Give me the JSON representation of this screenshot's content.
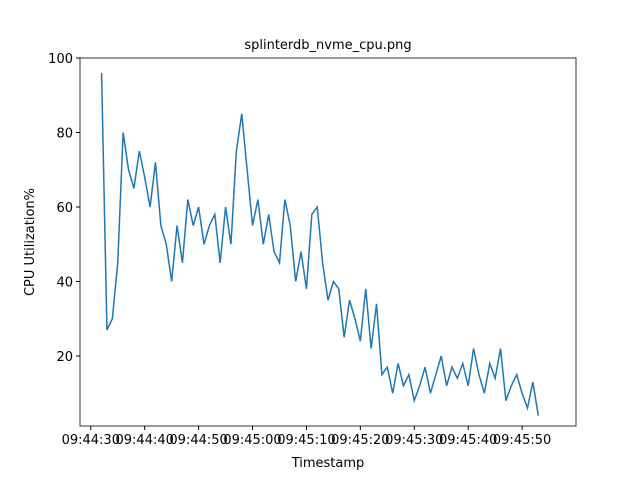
{
  "chart_data": {
    "type": "line",
    "title": "splinterdb_nvme_cpu.png",
    "x_label": "Timestamp",
    "y_label": "CPU Utilization%",
    "x": [
      "09:44:32",
      "09:44:33",
      "09:44:34",
      "09:44:35",
      "09:44:36",
      "09:44:37",
      "09:44:38",
      "09:44:39",
      "09:44:40",
      "09:44:41",
      "09:44:42",
      "09:44:43",
      "09:44:44",
      "09:44:45",
      "09:44:46",
      "09:44:47",
      "09:44:48",
      "09:44:49",
      "09:44:50",
      "09:44:51",
      "09:44:52",
      "09:44:53",
      "09:44:54",
      "09:44:55",
      "09:44:56",
      "09:44:57",
      "09:44:58",
      "09:44:59",
      "09:45:00",
      "09:45:01",
      "09:45:02",
      "09:45:03",
      "09:45:04",
      "09:45:05",
      "09:45:06",
      "09:45:07",
      "09:45:08",
      "09:45:09",
      "09:45:10",
      "09:45:11",
      "09:45:12",
      "09:45:13",
      "09:45:14",
      "09:45:15",
      "09:45:16",
      "09:45:17",
      "09:45:18",
      "09:45:19",
      "09:45:20",
      "09:45:21",
      "09:45:22",
      "09:45:23",
      "09:45:24",
      "09:45:25",
      "09:45:26",
      "09:45:27",
      "09:45:28",
      "09:45:29",
      "09:45:30",
      "09:45:31",
      "09:45:32",
      "09:45:33",
      "09:45:34",
      "09:45:35",
      "09:45:36",
      "09:45:37",
      "09:45:38",
      "09:45:39",
      "09:45:40",
      "09:45:41",
      "09:45:42",
      "09:45:43",
      "09:45:44",
      "09:45:45",
      "09:45:46",
      "09:45:47",
      "09:45:48",
      "09:45:49",
      "09:45:50",
      "09:45:51",
      "09:45:52",
      "09:45:53"
    ],
    "series": [
      {
        "color": "#1f77b4",
        "values": [
          96,
          27,
          30,
          45,
          80,
          70,
          65,
          75,
          68,
          60,
          72,
          55,
          50,
          40,
          55,
          45,
          62,
          55,
          60,
          50,
          55,
          58,
          45,
          60,
          50,
          75,
          85,
          70,
          55,
          62,
          50,
          58,
          48,
          45,
          62,
          55,
          40,
          48,
          38,
          58,
          60,
          45,
          35,
          40,
          38,
          25,
          35,
          30,
          24,
          38,
          22,
          34,
          15,
          17,
          10,
          18,
          12,
          15,
          8,
          12,
          17,
          10,
          15,
          20,
          12,
          17,
          14,
          18,
          12,
          22,
          15,
          10,
          18,
          14,
          22,
          8,
          12,
          15,
          10,
          6,
          13,
          4
        ]
      }
    ],
    "xlim": [
      "09:44:28",
      "09:46:00"
    ],
    "xticks": [
      "09:44:30",
      "09:44:40",
      "09:44:50",
      "09:45:00",
      "09:45:10",
      "09:45:20",
      "09:45:30",
      "09:45:40",
      "09:45:50"
    ],
    "ylim": [
      1.2,
      100
    ],
    "yticks": [
      20,
      40,
      60,
      80,
      100
    ]
  }
}
